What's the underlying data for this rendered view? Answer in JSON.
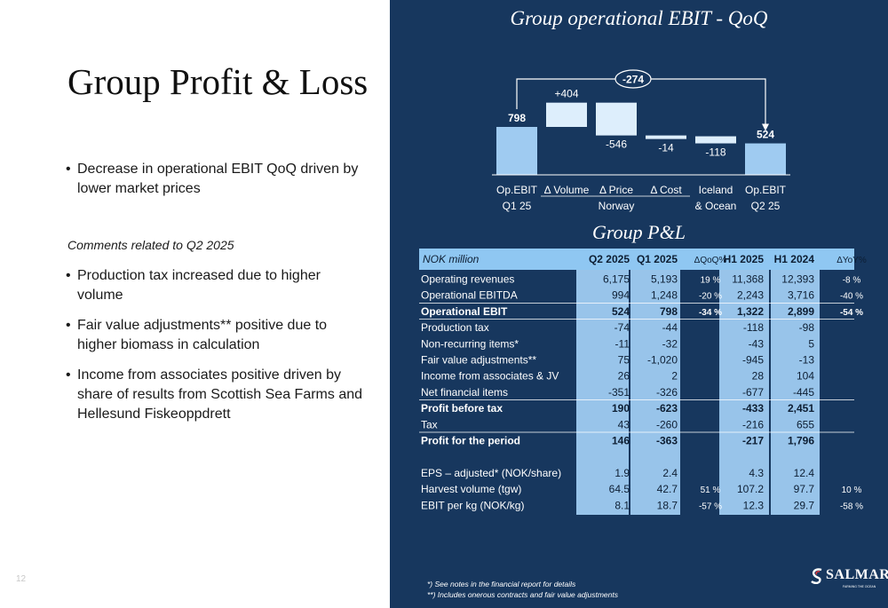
{
  "slide": {
    "title": "Group Profit & Loss",
    "page_number": "12",
    "bullets_top": [
      "Decrease in operational EBIT QoQ driven by lower market prices"
    ],
    "comments_heading": "Comments related to Q2 2025",
    "bullets_bottom": [
      "Production tax increased due to higher volume",
      "Fair value adjustments** positive due to higher biomass in calculation",
      "Income from associates positive driven by share of results from Scottish Sea Farms and Hellesund Fiskeoppdrett"
    ],
    "footnotes": [
      "*) See notes in the financial report for details",
      "**) Includes onerous contracts and fair value adjustments"
    ],
    "logo": {
      "text": "SALMAR",
      "tagline": "FARMING THE OCEAN"
    }
  },
  "colors": {
    "panel": "#17375e",
    "bar_endpoint": "#9fcbf1",
    "bar_delta": "#ddeefc",
    "text": "#ffffff",
    "header_band": "#8fc7f2"
  },
  "chart_data": {
    "type": "bar",
    "subtype": "waterfall",
    "title": "Group operational EBIT - QoQ",
    "categories": [
      "Op.EBIT Q1 25",
      "Δ Volume",
      "Δ Price",
      "Δ Cost",
      "Iceland & Ocean",
      "Op.EBIT Q2 25"
    ],
    "category_lines": [
      [
        "Op.EBIT",
        "Q1 25"
      ],
      [
        "Δ Volume"
      ],
      [
        "Δ Price"
      ],
      [
        "Δ Cost"
      ],
      [
        "Iceland",
        "& Ocean"
      ],
      [
        "Op.EBIT",
        "Q2 25"
      ]
    ],
    "group_label": "Norway",
    "values": [
      798,
      404,
      -546,
      -14,
      -118,
      524
    ],
    "labels": [
      "798",
      "+404",
      "-546",
      "-14",
      "-118",
      "524"
    ],
    "bar_kind": [
      "total",
      "delta",
      "delta",
      "delta",
      "delta",
      "total"
    ],
    "total_change": {
      "label": "-274",
      "value": -274,
      "from": "Op.EBIT Q1 25",
      "to": "Op.EBIT Q2 25"
    }
  },
  "pl_table": {
    "title": "Group P&L",
    "columns": [
      "NOK million",
      "Q2 2025",
      "Q1 2025",
      "ΔQoQ%",
      "H1 2025",
      "H1 2024",
      "ΔYoY%"
    ],
    "rows": [
      {
        "label": "Operating revenues",
        "values": [
          "6,175",
          "5,193",
          "19 %",
          "11,368",
          "12,393",
          "-8 %"
        ],
        "bold": false,
        "line": false
      },
      {
        "label": "Operational EBITDA",
        "values": [
          "994",
          "1,248",
          "-20 %",
          "2,243",
          "3,716",
          "-40 %"
        ],
        "bold": false,
        "line": true
      },
      {
        "label": "Operational EBIT",
        "values": [
          "524",
          "798",
          "-34 %",
          "1,322",
          "2,899",
          "-54 %"
        ],
        "bold": true,
        "line": true
      },
      {
        "label": "Production tax",
        "values": [
          "-74",
          "-44",
          "",
          "-118",
          "-98",
          ""
        ],
        "bold": false,
        "line": false
      },
      {
        "label": "Non-recurring items*",
        "values": [
          "-11",
          "-32",
          "",
          "-43",
          "5",
          ""
        ],
        "bold": false,
        "line": false
      },
      {
        "label": "Fair value adjustments**",
        "values": [
          "75",
          "-1,020",
          "",
          "-945",
          "-13",
          ""
        ],
        "bold": false,
        "line": false
      },
      {
        "label": "Income from associates & JV",
        "values": [
          "26",
          "2",
          "",
          "28",
          "104",
          ""
        ],
        "bold": false,
        "line": false
      },
      {
        "label": "Net financial items",
        "values": [
          "-351",
          "-326",
          "",
          "-677",
          "-445",
          ""
        ],
        "bold": false,
        "line": true
      },
      {
        "label": "Profit before tax",
        "values": [
          "190",
          "-623",
          "",
          "-433",
          "2,451",
          ""
        ],
        "bold": true,
        "line": false
      },
      {
        "label": "Tax",
        "values": [
          "43",
          "-260",
          "",
          "-216",
          "655",
          ""
        ],
        "bold": false,
        "line": true
      },
      {
        "label": "Profit for the period",
        "values": [
          "146",
          "-363",
          "",
          "-217",
          "1,796",
          ""
        ],
        "bold": true,
        "line": false
      },
      {
        "label": "",
        "values": [
          "",
          "",
          "",
          "",
          "",
          ""
        ],
        "bold": false,
        "line": false,
        "spacer": true
      },
      {
        "label": "EPS – adjusted* (NOK/share)",
        "values": [
          "1.9",
          "2.4",
          "",
          "4.3",
          "12.4",
          ""
        ],
        "bold": false,
        "line": false
      },
      {
        "label": "Harvest volume (tgw)",
        "values": [
          "64.5",
          "42.7",
          "51 %",
          "107.2",
          "97.7",
          "10 %"
        ],
        "bold": false,
        "line": false
      },
      {
        "label": "EBIT per kg (NOK/kg)",
        "values": [
          "8.1",
          "18.7",
          "-57 %",
          "12.3",
          "29.7",
          "-58 %"
        ],
        "bold": false,
        "line": false
      }
    ]
  }
}
